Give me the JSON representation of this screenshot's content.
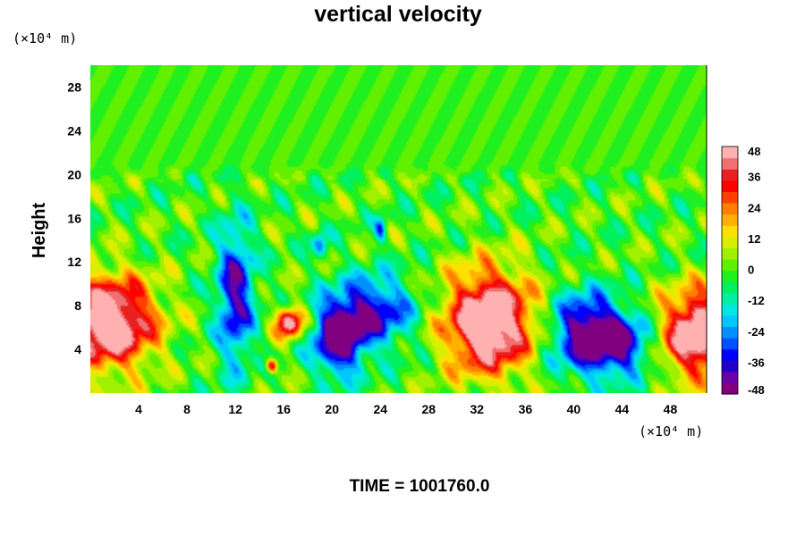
{
  "chart_data": {
    "type": "heatmap",
    "title": "vertical velocity",
    "ylabel": "Height",
    "y_unit_label": "(×10⁴ m)",
    "x_unit_label": "(×10⁴ m)",
    "footer": "TIME = 1001760.0",
    "x_range": [
      0,
      51
    ],
    "y_range": [
      0,
      30
    ],
    "x_ticks": [
      "4",
      "8",
      "12",
      "16",
      "20",
      "24",
      "28",
      "32",
      "36",
      "40",
      "44",
      "48"
    ],
    "y_ticks": [
      "4",
      "8",
      "12",
      "16",
      "20",
      "24",
      "28"
    ],
    "colorbar": {
      "range": [
        -48,
        48
      ],
      "ticks": [
        "48",
        "36",
        "24",
        "12",
        "0",
        "-12",
        "-24",
        "-36",
        "-48"
      ],
      "colors": [
        "#800080",
        "#6a00a8",
        "#2200cc",
        "#0000ff",
        "#0050ff",
        "#0090ff",
        "#00c8ff",
        "#00e8e0",
        "#00f0a0",
        "#00f060",
        "#20f020",
        "#60f000",
        "#a0f000",
        "#d8f000",
        "#ffe000",
        "#ffb000",
        "#ff8000",
        "#ff4000",
        "#ff0000",
        "#e82020",
        "#f07070",
        "#ffb0b0"
      ]
    },
    "features": [
      {
        "kind": "updraft",
        "x": 1.5,
        "y": 6.5,
        "sx": 3.0,
        "sy": 3.2,
        "value": 60
      },
      {
        "kind": "updraft",
        "x": 50.5,
        "y": 5.5,
        "sx": 2.5,
        "sy": 3.0,
        "value": 60
      },
      {
        "kind": "updraft",
        "x": 33.0,
        "y": 6.5,
        "sx": 2.8,
        "sy": 3.6,
        "value": 62
      },
      {
        "kind": "updraft",
        "x": 16.5,
        "y": 6.5,
        "sx": 0.9,
        "sy": 1.1,
        "value": 50
      },
      {
        "kind": "updraft",
        "x": 15.0,
        "y": 2.5,
        "sx": 0.35,
        "sy": 0.5,
        "value": 45
      },
      {
        "kind": "downdraft",
        "x": 12.0,
        "y": 9.0,
        "sx": 1.2,
        "sy": 5.0,
        "value": -40
      },
      {
        "kind": "downdraft",
        "x": 20.5,
        "y": 5.0,
        "sx": 1.6,
        "sy": 2.6,
        "value": -50
      },
      {
        "kind": "downdraft",
        "x": 23.5,
        "y": 7.5,
        "sx": 2.5,
        "sy": 2.5,
        "value": -38
      },
      {
        "kind": "downdraft",
        "x": 41.0,
        "y": 5.5,
        "sx": 2.2,
        "sy": 2.8,
        "value": -48
      },
      {
        "kind": "downdraft",
        "x": 44.0,
        "y": 4.5,
        "sx": 2.0,
        "sy": 2.2,
        "value": -36
      },
      {
        "kind": "downdraft",
        "x": 19.0,
        "y": 13.5,
        "sx": 0.5,
        "sy": 1.0,
        "value": -25
      },
      {
        "kind": "downdraft",
        "x": 24.0,
        "y": 15.0,
        "sx": 0.35,
        "sy": 0.9,
        "value": -28
      }
    ]
  }
}
